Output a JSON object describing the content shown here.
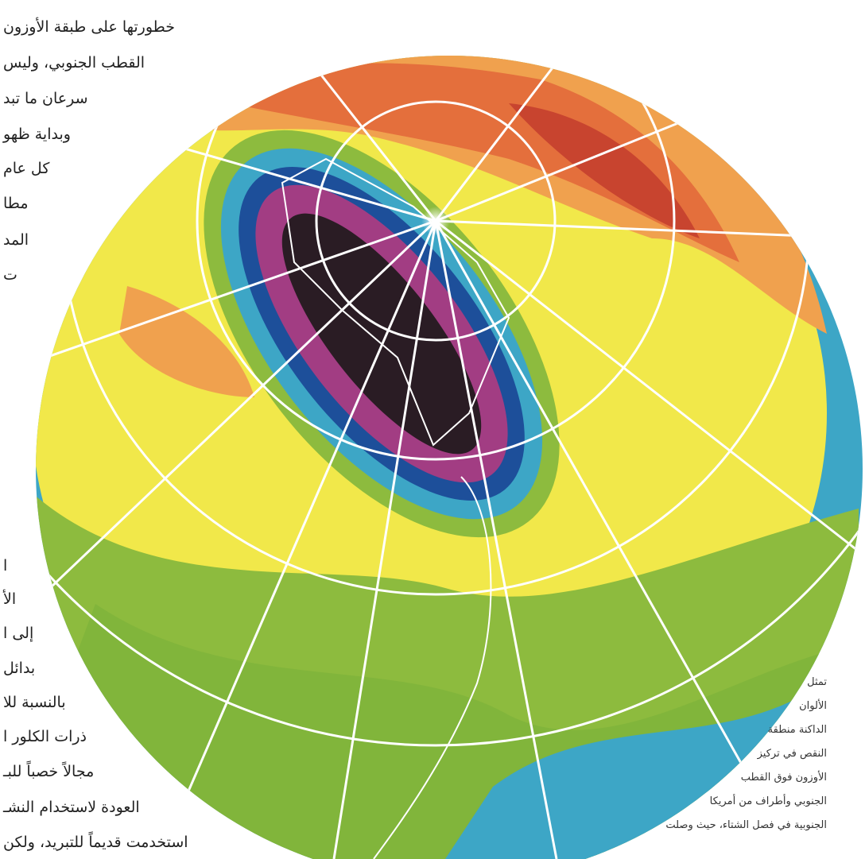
{
  "column_text": [
    "خطورتها على طبقة الأوزون",
    "القطب الجنوبي، وليس",
    "سرعان ما تبد",
    "وبداية ظهو",
    "كل عام",
    "مطا",
    "المد",
    "ت",
    "ا",
    "الأ",
    "إلى ا",
    "بدائل",
    "بالنسبة للا",
    "ذرات الكلور ا",
    "مجالاً خصباً للبـ",
    "العودة لاستخدام النشـ",
    "استخدمت قديماً للتبريد، ولكن"
  ],
  "caption": [
    "تمثل",
    "الألوان",
    "الداكنة منطقة",
    "النقص في تركيز",
    "الأوزون فوق القطب",
    "الجنوبي وأطراف من أمريكا",
    "الجنوبية في فصل الشتاء، حيث وصلت"
  ]
}
